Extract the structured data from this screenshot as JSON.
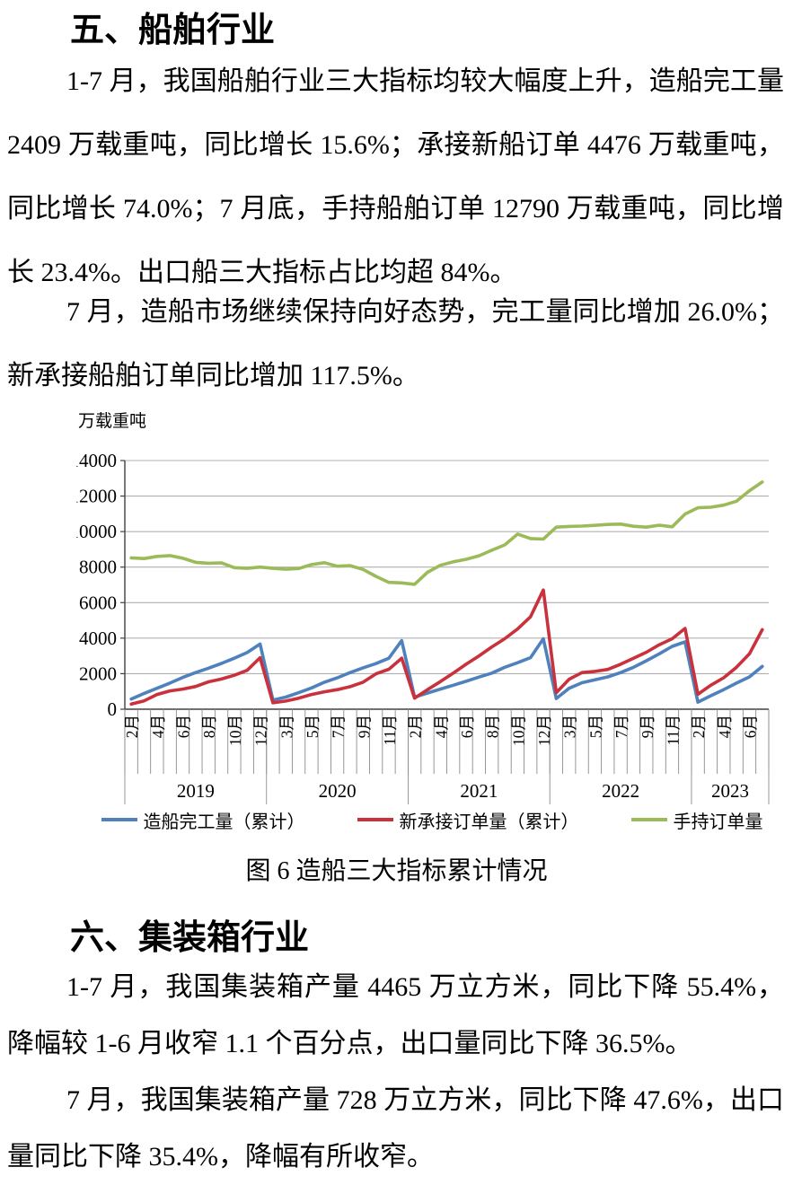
{
  "document": {
    "section5": {
      "heading": "五、船舶行业",
      "para1": "1-7 月，我国船舶行业三大指标均较大幅度上升，造船完工量 2409 万载重吨，同比增长 15.6%；承接新船订单 4476 万载重吨，同比增长 74.0%；7 月底，手持船舶订单 12790 万载重吨，同比增长 23.4%。出口船三大指标占比均超 84%。",
      "para2": "7 月，造船市场继续保持向好态势，完工量同比增加 26.0%；新承接船舶订单同比增加 117.5%。"
    },
    "figure_caption": "图 6  造船三大指标累计情况",
    "section6": {
      "heading": "六、集装箱行业",
      "para1": "1-7 月，我国集装箱产量 4465 万立方米，同比下降 55.4%，降幅较 1-6 月收窄 1.1 个百分点，出口量同比下降 36.5%。",
      "para2": "7 月，我国集装箱产量 728 万立方米，同比下降 47.6%，出口量同比下降 35.4%，降幅有所收窄。"
    }
  },
  "chart_data": {
    "type": "line",
    "unit_label": "万载重吨",
    "ylim": [
      0,
      14000
    ],
    "ytick_step": 2000,
    "grid": true,
    "legend_position": "bottom",
    "label_every": 2,
    "categories": [
      "2月",
      "3月",
      "4月",
      "5月",
      "6月",
      "7月",
      "8月",
      "9月",
      "10月",
      "11月",
      "12月",
      "2月",
      "3月",
      "4月",
      "5月",
      "6月",
      "7月",
      "8月",
      "9月",
      "10月",
      "11月",
      "12月",
      "2月",
      "3月",
      "4月",
      "5月",
      "6月",
      "7月",
      "8月",
      "9月",
      "10月",
      "11月",
      "12月",
      "2月",
      "3月",
      "4月",
      "5月",
      "6月",
      "7月",
      "8月",
      "9月",
      "10月",
      "11月",
      "12月",
      "2月",
      "3月",
      "4月",
      "5月",
      "6月",
      "7月"
    ],
    "year_groups": [
      {
        "label": "2019",
        "count": 11
      },
      {
        "label": "2020",
        "count": 11
      },
      {
        "label": "2021",
        "count": 11
      },
      {
        "label": "2022",
        "count": 11
      },
      {
        "label": "2023",
        "count": 6
      }
    ],
    "series": [
      {
        "name": "造船完工量（累计）",
        "color": "#4F81BD",
        "values": [
          570,
          890,
          1180,
          1470,
          1790,
          2060,
          2310,
          2580,
          2870,
          3190,
          3670,
          510,
          680,
          930,
          1200,
          1520,
          1770,
          2060,
          2330,
          2570,
          2870,
          3860,
          680,
          910,
          1130,
          1350,
          1570,
          1810,
          2030,
          2360,
          2620,
          2900,
          3970,
          600,
          1180,
          1490,
          1660,
          1820,
          2060,
          2360,
          2730,
          3120,
          3540,
          3790,
          400,
          760,
          1100,
          1470,
          1820,
          2409
        ]
      },
      {
        "name": "新承接订单量（累计）",
        "color": "#C9323C",
        "values": [
          290,
          470,
          830,
          1030,
          1130,
          1280,
          1540,
          1700,
          1910,
          2190,
          2900,
          360,
          460,
          620,
          830,
          980,
          1100,
          1270,
          1520,
          1990,
          2250,
          2870,
          620,
          1100,
          1550,
          2030,
          2530,
          3000,
          3510,
          3970,
          4520,
          5200,
          6710,
          930,
          1690,
          2060,
          2130,
          2240,
          2530,
          2870,
          3210,
          3630,
          3970,
          4550,
          840,
          1350,
          1770,
          2360,
          3120,
          4476
        ]
      },
      {
        "name": "手持订单量",
        "color": "#9BBB59",
        "values": [
          8520,
          8480,
          8600,
          8650,
          8500,
          8270,
          8220,
          8240,
          7970,
          7930,
          8000,
          7930,
          7880,
          7920,
          8140,
          8250,
          8050,
          8080,
          7870,
          7480,
          7140,
          7110,
          7030,
          7710,
          8100,
          8300,
          8440,
          8640,
          8950,
          9250,
          9860,
          9610,
          9580,
          10250,
          10290,
          10310,
          10350,
          10400,
          10420,
          10300,
          10250,
          10360,
          10270,
          10990,
          11340,
          11370,
          11490,
          11710,
          12300,
          12790
        ]
      }
    ]
  }
}
